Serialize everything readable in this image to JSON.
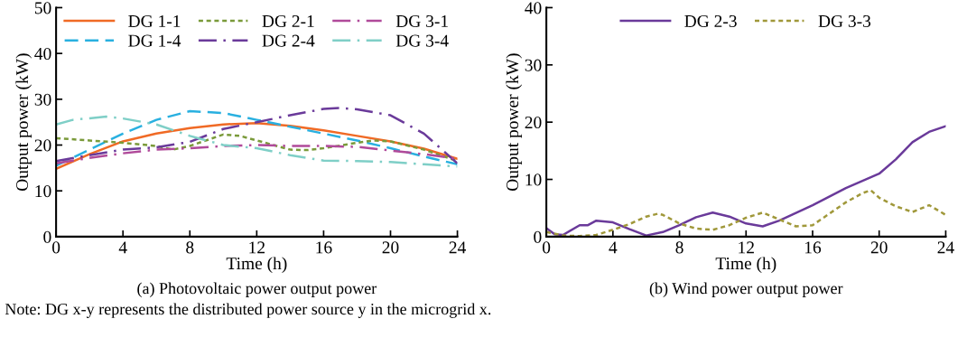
{
  "chart_data": [
    {
      "type": "line",
      "xlabel": "Time (h)",
      "ylabel": "Output power (kW)",
      "xlim": [
        0,
        24
      ],
      "xticks": [
        0,
        4,
        8,
        12,
        16,
        20,
        24
      ],
      "ylim": [
        0,
        50
      ],
      "yticks": [
        0,
        10,
        20,
        30,
        40,
        50
      ],
      "grid": false,
      "legend": "top",
      "marker": "none",
      "annotations": [
        "(a) Photovoltaic power output power",
        "Note: DG x-y represents the distributed power source y in the microgrid x."
      ],
      "series": [
        {
          "name": "DG 1-1",
          "color": "#f06a25",
          "line_style": "solid",
          "x": [
            0,
            2,
            4,
            6,
            8,
            10,
            12,
            14,
            16,
            18,
            20,
            22,
            24
          ],
          "values": [
            14.8,
            18,
            20.8,
            22.5,
            23.7,
            24.5,
            24.8,
            24.2,
            23.2,
            22,
            20.8,
            19.2,
            17
          ]
        },
        {
          "name": "DG 1-4",
          "color": "#29b0e0",
          "line_style": "dashed",
          "x": [
            0,
            2,
            4,
            6,
            8,
            10,
            12,
            14,
            16,
            18,
            20,
            22,
            24
          ],
          "values": [
            15.5,
            19,
            22.5,
            25.5,
            27.4,
            27,
            25.5,
            24,
            22.5,
            21,
            19.3,
            17.5,
            15.8
          ]
        },
        {
          "name": "DG 2-1",
          "color": "#7a9a3a",
          "line_style": "dotted",
          "x": [
            0,
            2,
            4,
            6,
            7,
            8,
            10,
            11,
            12,
            14,
            15,
            16,
            18,
            19,
            20,
            22,
            24
          ],
          "values": [
            21.5,
            21,
            20.5,
            19.8,
            19,
            19.8,
            22.3,
            22,
            21,
            19,
            18.9,
            19.3,
            20.5,
            21,
            20.8,
            19,
            16.5
          ]
        },
        {
          "name": "DG 2-4",
          "color": "#6a3a9a",
          "line_style": "dashdot",
          "x": [
            0,
            2,
            4,
            6,
            8,
            10,
            12,
            14,
            16,
            17,
            18,
            20,
            22,
            24
          ],
          "values": [
            16.5,
            17.8,
            19,
            19.5,
            20.7,
            23.5,
            25,
            26.5,
            27.9,
            28.1,
            27.8,
            26.5,
            22.5,
            16
          ]
        },
        {
          "name": "DG 3-1",
          "color": "#b04a9a",
          "line_style": "dashdot",
          "x": [
            0,
            2,
            4,
            6,
            8,
            10,
            12,
            14,
            16,
            18,
            20,
            22,
            24
          ],
          "values": [
            16,
            17.2,
            18.2,
            19,
            19.3,
            19.8,
            20,
            19.8,
            19.8,
            19.6,
            18.8,
            18,
            17
          ]
        },
        {
          "name": "DG 3-4",
          "color": "#7fcfc7",
          "line_style": "dashdot",
          "x": [
            0,
            1,
            3,
            4,
            6,
            8,
            10,
            12,
            14,
            16,
            18,
            20,
            22,
            24
          ],
          "values": [
            24.5,
            25.5,
            26.2,
            25.8,
            24.5,
            22,
            20,
            19.3,
            17.8,
            16.6,
            16.5,
            16.3,
            15.8,
            15.3
          ]
        }
      ]
    },
    {
      "type": "line",
      "xlabel": "Time (h)",
      "ylabel": "Output power (kW)",
      "xlim": [
        0,
        24
      ],
      "xticks": [
        0,
        4,
        8,
        12,
        16,
        20,
        24
      ],
      "ylim": [
        0,
        40
      ],
      "yticks": [
        0,
        10,
        20,
        30,
        40
      ],
      "grid": false,
      "legend": "top",
      "marker": "none",
      "annotations": [
        "(b) Wind power output power"
      ],
      "series": [
        {
          "name": "DG 2-3",
          "color": "#6a3a9a",
          "line_style": "solid",
          "x": [
            0,
            0.5,
            1,
            2,
            2.5,
            3,
            4,
            5,
            6,
            7,
            8,
            9,
            10,
            11,
            12,
            13,
            14,
            16,
            18,
            20,
            21,
            22,
            23,
            24
          ],
          "values": [
            1.5,
            0.4,
            0.3,
            2,
            2,
            2.8,
            2.5,
            1.3,
            0.2,
            0.8,
            2,
            3.4,
            4.2,
            3.5,
            2.3,
            1.8,
            2.8,
            5.5,
            8.5,
            11,
            13.5,
            16.5,
            18.3,
            19.3
          ]
        },
        {
          "name": "DG 3-3",
          "color": "#a0983a",
          "line_style": "dotted",
          "x": [
            0,
            1,
            2,
            3,
            4,
            5,
            6,
            6.7,
            7,
            8,
            9,
            10,
            11,
            12,
            13,
            14,
            15,
            16,
            17,
            18,
            19,
            19.5,
            20,
            21,
            22,
            23,
            24
          ],
          "values": [
            0.8,
            0.2,
            0.1,
            0.3,
            1.2,
            2.2,
            3.5,
            4,
            3.8,
            2.3,
            1.4,
            1.2,
            2,
            3.3,
            4.2,
            3,
            1.8,
            2,
            4,
            6,
            7.6,
            8.1,
            6.8,
            5.3,
            4.3,
            5.5,
            3.8
          ]
        }
      ]
    }
  ]
}
